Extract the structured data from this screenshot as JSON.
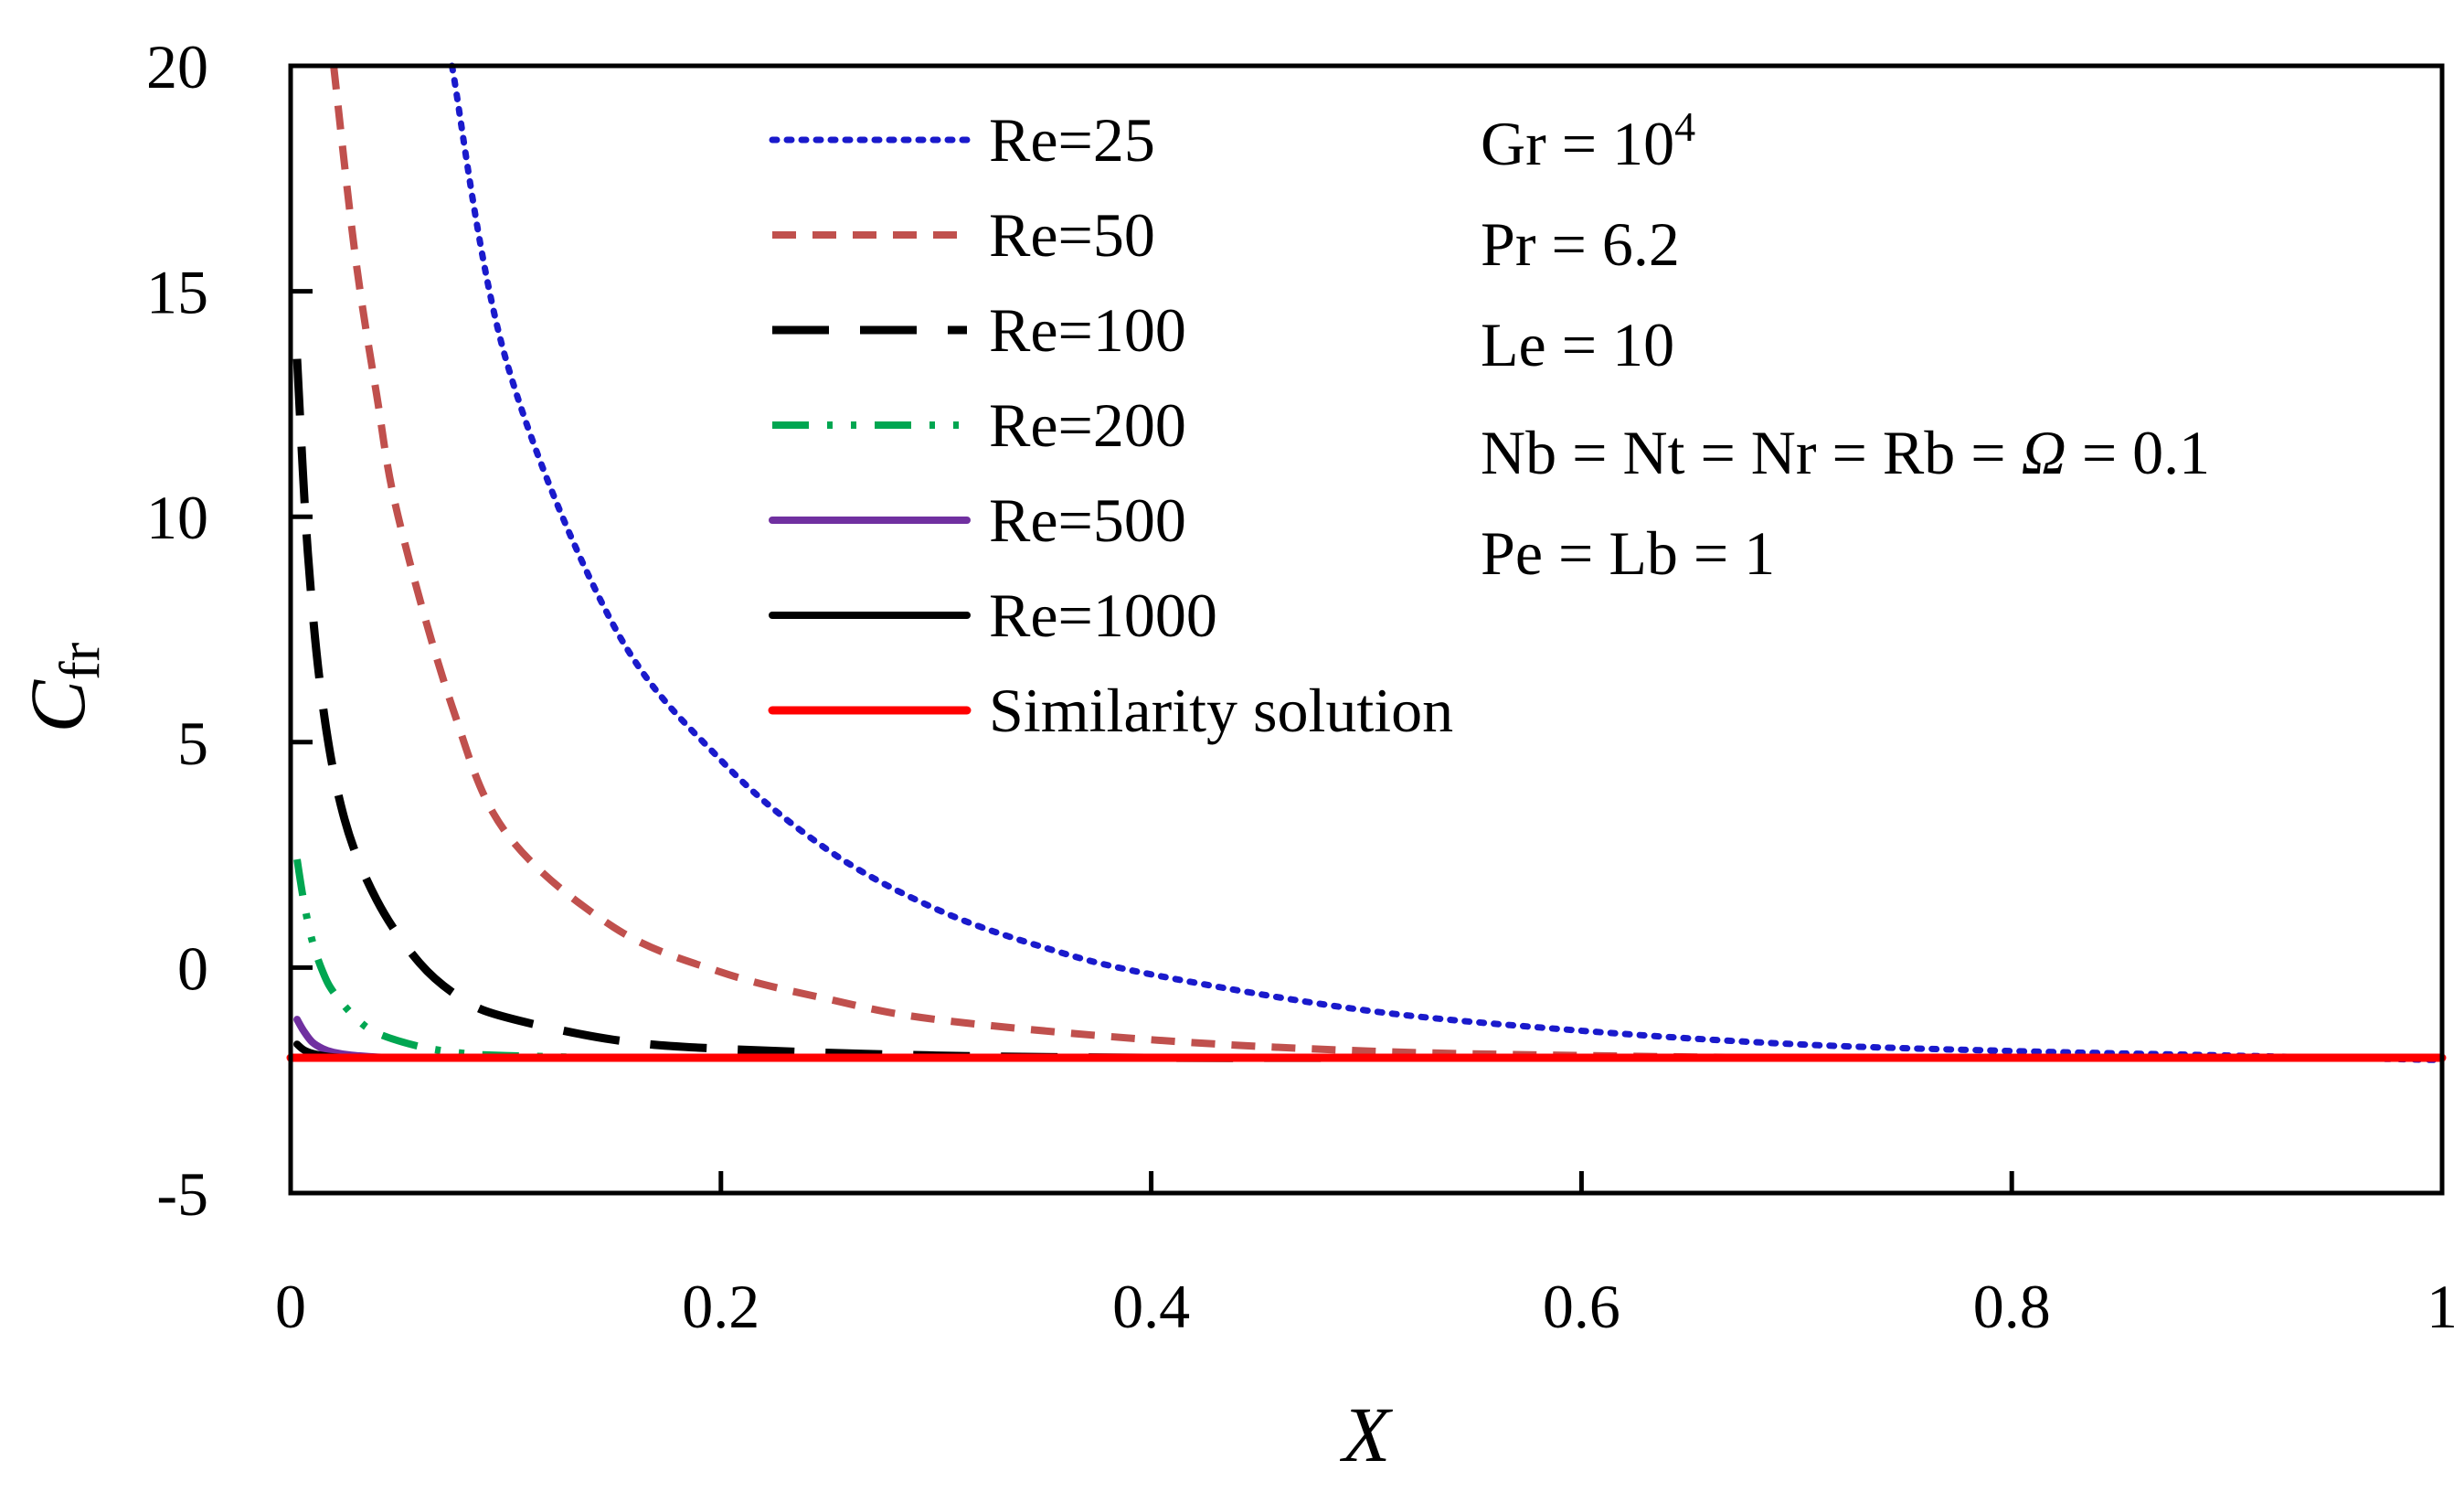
{
  "chart_data": {
    "type": "line",
    "xlabel": "X",
    "ylabel": {
      "base": "C",
      "sub": "fr"
    },
    "xlim": [
      0,
      1
    ],
    "ylim": [
      -5,
      20
    ],
    "xticks": [
      0,
      0.2,
      0.4,
      0.6,
      0.8,
      1
    ],
    "xtick_labels": [
      "0",
      "0.2",
      "0.4",
      "0.6",
      "0.8",
      "1"
    ],
    "yticks": [
      -5,
      0,
      5,
      10,
      15,
      20
    ],
    "ytick_labels": [
      "-5",
      "0",
      "5",
      "10",
      "15",
      "20"
    ],
    "legend_position": "top-center",
    "series": [
      {
        "name": "Re=25",
        "color": "#1a1acc",
        "style": "dotted",
        "x": [
          0.075,
          0.1,
          0.15,
          0.2,
          0.25,
          0.3,
          0.35,
          0.4,
          0.5,
          0.6,
          0.7,
          0.8,
          0.9,
          1.0
        ],
        "y": [
          20,
          13.5,
          7.6,
          4.6,
          2.6,
          1.3,
          0.45,
          -0.15,
          -0.95,
          -1.4,
          -1.7,
          -1.85,
          -1.95,
          -2.05
        ]
      },
      {
        "name": "Re=50",
        "color": "#c0504d",
        "style": "dashed",
        "x": [
          0.02,
          0.03,
          0.04,
          0.05,
          0.075,
          0.1,
          0.15,
          0.2,
          0.25,
          0.3,
          0.4,
          0.5,
          0.6,
          0.7,
          0.8,
          0.9,
          1.0
        ],
        "y": [
          20,
          15.8,
          12.7,
          10.0,
          5.8,
          3.0,
          0.9,
          -0.1,
          -0.7,
          -1.15,
          -1.6,
          -1.85,
          -1.95,
          -2.0,
          -2.0,
          -2.0,
          -2.0
        ]
      },
      {
        "name": "Re=100",
        "color": "#000000",
        "style": "longdash",
        "x": [
          0.003,
          0.008,
          0.015,
          0.025,
          0.04,
          0.06,
          0.08,
          0.1,
          0.15,
          0.2,
          0.3,
          0.4,
          0.5,
          0.6,
          0.8,
          1.0
        ],
        "y": [
          13.5,
          9.2,
          5.8,
          3.3,
          1.5,
          0.1,
          -0.7,
          -1.1,
          -1.6,
          -1.8,
          -1.95,
          -2.0,
          -2.0,
          -2.0,
          -2.0,
          -2.0
        ]
      },
      {
        "name": "Re=200",
        "color": "#00a651",
        "style": "dashdotdot",
        "x": [
          0.003,
          0.006,
          0.01,
          0.015,
          0.02,
          0.03,
          0.04,
          0.06,
          0.08,
          0.1,
          0.15,
          0.2,
          0.4,
          0.6,
          0.8,
          1.0
        ],
        "y": [
          2.4,
          1.5,
          0.6,
          -0.1,
          -0.55,
          -1.1,
          -1.45,
          -1.75,
          -1.9,
          -1.95,
          -2.0,
          -2.0,
          -2.0,
          -2.0,
          -2.0,
          -2.0
        ]
      },
      {
        "name": "Re=500",
        "color": "#7030a0",
        "style": "solid",
        "x": [
          0.003,
          0.006,
          0.01,
          0.015,
          0.02,
          0.03,
          0.05,
          0.1,
          0.2,
          0.4,
          0.6,
          0.8,
          1.0
        ],
        "y": [
          -1.15,
          -1.4,
          -1.65,
          -1.8,
          -1.88,
          -1.95,
          -2.0,
          -2.0,
          -2.0,
          -2.0,
          -2.0,
          -2.0,
          -2.0
        ]
      },
      {
        "name": "Re=1000",
        "color": "#000000",
        "style": "solid",
        "x": [
          0.003,
          0.006,
          0.01,
          0.015,
          0.02,
          0.03,
          0.05,
          0.1,
          0.2,
          0.4,
          0.6,
          0.8,
          1.0
        ],
        "y": [
          -1.7,
          -1.82,
          -1.9,
          -1.95,
          -1.98,
          -2.0,
          -2.0,
          -2.0,
          -2.0,
          -2.0,
          -2.0,
          -2.0,
          -2.0
        ]
      },
      {
        "name": "Similarity solution",
        "color": "#ff0000",
        "style": "solid",
        "x": [
          0,
          1
        ],
        "y": [
          -2.0,
          -2.0
        ]
      }
    ],
    "annotations": {
      "gr_prefix": "Gr = 10",
      "gr_exp": "4",
      "pr": "Pr = 6.2",
      "le": "Le = 10",
      "nb_prefix": "Nb = Nt = Nr = Rb = ",
      "omega": "Ω",
      "nb_suffix": " = 0.1",
      "pe": "Pe = Lb = 1"
    }
  }
}
